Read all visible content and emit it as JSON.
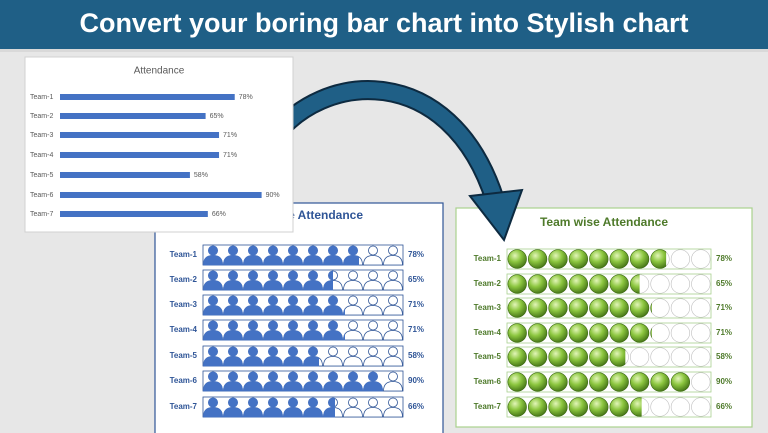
{
  "header": {
    "title": "Convert your boring bar chart into Stylish chart"
  },
  "chart_data": [
    {
      "type": "bar",
      "title": "Attendance",
      "categories": [
        "Team-1",
        "Team-2",
        "Team-3",
        "Team-4",
        "Team-5",
        "Team-6",
        "Team-7"
      ],
      "values": [
        78,
        65,
        71,
        71,
        58,
        90,
        66
      ],
      "value_labels": [
        "78%",
        "65%",
        "71%",
        "71%",
        "58%",
        "90%",
        "66%"
      ],
      "color": "#4472c4"
    },
    {
      "type": "pictogram",
      "icon": "person",
      "title": "Team wise Attendance",
      "categories": [
        "Team-1",
        "Team-2",
        "Team-3",
        "Team-4",
        "Team-5",
        "Team-6",
        "Team-7"
      ],
      "values": [
        78,
        65,
        71,
        71,
        58,
        90,
        66
      ],
      "value_labels": [
        "78%",
        "65%",
        "71%",
        "71%",
        "58%",
        "90%",
        "66%"
      ],
      "color": "#4472c4"
    },
    {
      "type": "pictogram",
      "icon": "ball",
      "title": "Team wise Attendance",
      "categories": [
        "Team-1",
        "Team-2",
        "Team-3",
        "Team-4",
        "Team-5",
        "Team-6",
        "Team-7"
      ],
      "values": [
        78,
        65,
        71,
        71,
        58,
        90,
        66
      ],
      "value_labels": [
        "78%",
        "65%",
        "71%",
        "71%",
        "58%",
        "90%",
        "66%"
      ],
      "color": "#70ad47"
    }
  ]
}
